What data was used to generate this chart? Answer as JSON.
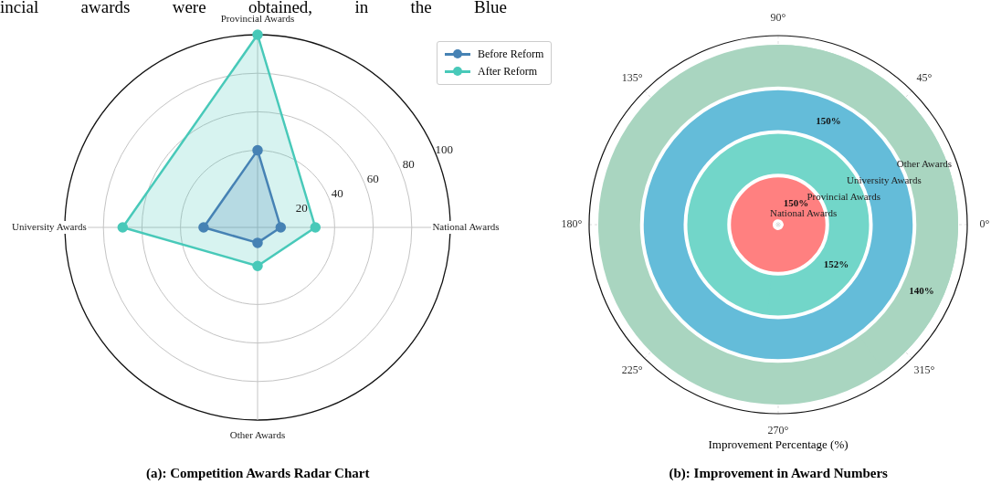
{
  "chart_data": [
    {
      "type": "radar",
      "title": "(a): Competition Awards Radar Chart",
      "categories": [
        "Provincial Awards",
        "National Awards",
        "Other Awards",
        "University Awards"
      ],
      "series": [
        {
          "name": "Before Reform",
          "color": "#4682b4",
          "values": [
            40,
            12,
            8,
            28
          ]
        },
        {
          "name": "After Reform",
          "color": "#48c9b9",
          "values": [
            100,
            30,
            20,
            70
          ]
        }
      ],
      "ylim": [
        0,
        100
      ],
      "yticks": [
        20,
        40,
        60,
        80,
        100
      ],
      "grid": true,
      "legend": "top right",
      "marker": "circle",
      "annotations": [
        "incial awards were obtained, in the Blue"
      ]
    },
    {
      "type": "other",
      "title": "(b): Improvement in Award Numbers",
      "xlabel": "Improvement Percentage (%)",
      "categories": [
        "National Awards",
        "Provincial Awards",
        "University Awards",
        "Other Awards"
      ],
      "values": [
        150,
        152,
        150,
        140
      ],
      "colors": [
        "#ff8080",
        "#72d6c9",
        "#64bcd9",
        "#a9d5c0"
      ],
      "value_labels": [
        "150%",
        "152%",
        "150%",
        "140%"
      ],
      "annotations": [
        "90°",
        "135°",
        "45°",
        "180°",
        "0°",
        "225°",
        "315°",
        "270°"
      ]
    }
  ]
}
